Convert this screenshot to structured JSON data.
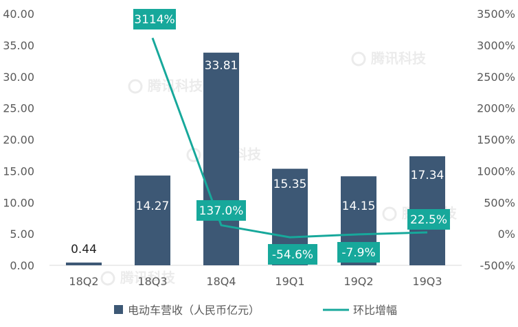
{
  "chart_data": {
    "type": "bar",
    "categories": [
      "18Q2",
      "18Q3",
      "18Q4",
      "19Q1",
      "19Q2",
      "19Q3"
    ],
    "series": [
      {
        "name": "电动车营收（人民币亿元）",
        "type": "bar",
        "axis": "left",
        "values": [
          0.44,
          14.27,
          33.81,
          15.35,
          14.15,
          17.34
        ],
        "labels": [
          "0.44",
          "14.27",
          "33.81",
          "15.35",
          "14.15",
          "17.34"
        ]
      },
      {
        "name": "环比增幅",
        "type": "line",
        "axis": "right",
        "values": [
          null,
          3114,
          137.0,
          -54.6,
          -7.9,
          22.5
        ],
        "labels": [
          "",
          "3114%",
          "137.0%",
          "-54.6%",
          "-7.9%",
          "22.5%"
        ]
      }
    ],
    "y_left": {
      "range": [
        0,
        40
      ],
      "ticks": [
        "0.00",
        "5.00",
        "10.00",
        "15.00",
        "20.00",
        "25.00",
        "30.00",
        "35.00",
        "40.00"
      ]
    },
    "y_right": {
      "range": [
        -500,
        3500
      ],
      "ticks": [
        "-500%",
        "0%",
        "500%",
        "1000%",
        "1500%",
        "2000%",
        "2500%",
        "3000%",
        "3500%"
      ]
    },
    "legend_position": "bottom",
    "grid": false,
    "colors": {
      "bar": "#3d5875",
      "line": "#17a89b",
      "label_box": "#17a89b",
      "axis_text": "#595959",
      "axis_line": "#d9d9d9"
    },
    "watermark": "腾讯科技"
  }
}
